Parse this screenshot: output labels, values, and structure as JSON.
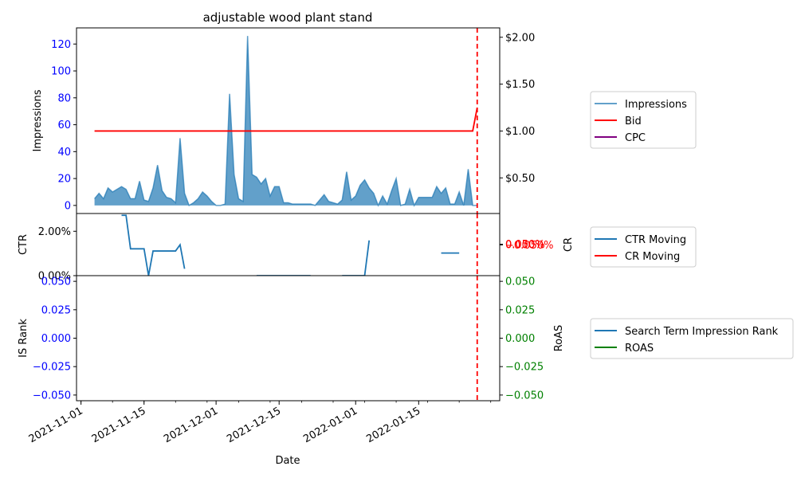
{
  "chart_data": {
    "type": "line",
    "title": "adjustable wood plant stand",
    "xlabel": "Date",
    "x_ticks": [
      "2021-11-01",
      "2021-11-15",
      "2021-12-01",
      "2021-12-15",
      "2022-01-01",
      "2022-01-15"
    ],
    "marker_date": "2022-01-28",
    "panels": [
      {
        "name": "impressions",
        "ylabel_left": "Impressions",
        "ylabel_right": "",
        "ylim_left": [
          -6,
          132
        ],
        "ylim_right": [
          0.12,
          2.1
        ],
        "yticks_left": [
          "0",
          "20",
          "40",
          "60",
          "80",
          "100",
          "120"
        ],
        "yticks_right": [
          "$0.50",
          "$1.00",
          "$1.50",
          "$2.00"
        ],
        "left_tick_color": "#0000ff",
        "right_tick_color": "#000000",
        "series": [
          {
            "name": "Impressions",
            "axis": "left",
            "kind": "area",
            "color": "#1f77b4",
            "x": [
              "2021-11-04",
              "2021-11-05",
              "2021-11-06",
              "2021-11-07",
              "2021-11-08",
              "2021-11-09",
              "2021-11-10",
              "2021-11-11",
              "2021-11-12",
              "2021-11-13",
              "2021-11-14",
              "2021-11-15",
              "2021-11-16",
              "2021-11-17",
              "2021-11-18",
              "2021-11-19",
              "2021-11-20",
              "2021-11-21",
              "2021-11-22",
              "2021-11-23",
              "2021-11-24",
              "2021-11-25",
              "2021-11-26",
              "2021-11-27",
              "2021-11-28",
              "2021-11-29",
              "2021-11-30",
              "2021-12-01",
              "2021-12-02",
              "2021-12-03",
              "2021-12-04",
              "2021-12-05",
              "2021-12-06",
              "2021-12-07",
              "2021-12-08",
              "2021-12-09",
              "2021-12-10",
              "2021-12-11",
              "2021-12-12",
              "2021-12-13",
              "2021-12-14",
              "2021-12-15",
              "2021-12-16",
              "2021-12-17",
              "2021-12-18",
              "2021-12-19",
              "2021-12-20",
              "2021-12-21",
              "2021-12-22",
              "2021-12-23",
              "2021-12-24",
              "2021-12-25",
              "2021-12-26",
              "2021-12-27",
              "2021-12-28",
              "2021-12-29",
              "2021-12-30",
              "2021-12-31",
              "2022-01-01",
              "2022-01-02",
              "2022-01-03",
              "2022-01-04",
              "2022-01-05",
              "2022-01-06",
              "2022-01-07",
              "2022-01-08",
              "2022-01-09",
              "2022-01-10",
              "2022-01-11",
              "2022-01-12",
              "2022-01-13",
              "2022-01-14",
              "2022-01-15",
              "2022-01-16",
              "2022-01-17",
              "2022-01-18",
              "2022-01-19",
              "2022-01-20",
              "2022-01-21",
              "2022-01-22",
              "2022-01-23",
              "2022-01-24",
              "2022-01-25",
              "2022-01-26",
              "2022-01-27",
              "2022-01-28"
            ],
            "values": [
              5,
              9,
              5,
              13,
              10,
              12,
              14,
              12,
              5,
              5,
              18,
              4,
              3,
              13,
              30,
              11,
              6,
              5,
              2,
              50,
              9,
              0,
              2,
              5,
              10,
              7,
              3,
              0,
              0,
              1,
              83,
              23,
              5,
              3,
              126,
              23,
              21,
              16,
              20,
              7,
              14,
              14,
              2,
              2,
              1,
              1,
              1,
              1,
              1,
              0,
              4,
              8,
              3,
              2,
              1,
              4,
              25,
              4,
              7,
              15,
              19,
              13,
              9,
              0,
              7,
              1,
              11,
              20,
              0,
              1,
              12,
              0,
              6,
              6,
              6,
              6,
              14,
              9,
              13,
              1,
              1,
              10,
              0,
              27,
              0,
              0
            ]
          },
          {
            "name": "Bid",
            "axis": "right",
            "kind": "line",
            "color": "#ff0000",
            "x": [
              "2021-11-04",
              "2022-01-27",
              "2022-01-28"
            ],
            "values": [
              1.0,
              1.0,
              1.25
            ]
          },
          {
            "name": "CPC",
            "axis": "right",
            "kind": "line",
            "color": "#800080",
            "x": [],
            "values": []
          }
        ]
      },
      {
        "name": "ctr-cr",
        "ylabel_left": "CTR",
        "ylabel_right": "CR",
        "ylim_left": [
          0.0,
          0.028
        ],
        "ylim_right": [
          -0.05,
          0.05
        ],
        "yticks_left": [
          "0.00%",
          "2.00%"
        ],
        "yticks_right": [
          "0.050%",
          "0.000%",
          "−0.050%"
        ],
        "left_tick_color": "#000000",
        "right_tick_color": "#ff0000",
        "series": [
          {
            "name": "CTR Moving",
            "axis": "left",
            "kind": "line",
            "color": "#1f77b4",
            "segments": [
              {
                "x": [
                  "2021-11-10",
                  "2021-11-11",
                  "2021-11-12",
                  "2021-11-13",
                  "2021-11-14",
                  "2021-11-15",
                  "2021-11-16",
                  "2021-11-17",
                  "2021-11-18",
                  "2021-11-19",
                  "2021-11-20",
                  "2021-11-21",
                  "2021-11-22",
                  "2021-11-23",
                  "2021-11-24"
                ],
                "values": [
                  0.0272,
                  0.0272,
                  0.0121,
                  0.0121,
                  0.0121,
                  0.0121,
                  0.0,
                  0.0111,
                  0.0111,
                  0.0111,
                  0.0111,
                  0.0111,
                  0.0111,
                  0.0139,
                  0.0031
                ]
              },
              {
                "x": [
                  "2021-12-10",
                  "2021-12-22"
                ],
                "values": [
                  0.0,
                  0.0
                ]
              },
              {
                "x": [
                  "2021-12-29",
                  "2022-01-03",
                  "2022-01-04"
                ],
                "values": [
                  0.0,
                  0.0,
                  0.0159
                ]
              },
              {
                "x": [
                  "2022-01-20",
                  "2022-01-24"
                ],
                "values": [
                  0.0102,
                  0.0102
                ]
              }
            ]
          },
          {
            "name": "CR Moving",
            "axis": "right",
            "kind": "line",
            "color": "#ff0000",
            "x": [],
            "values": []
          }
        ]
      },
      {
        "name": "rank-roas",
        "ylabel_left": "IS Rank",
        "ylabel_right": "RoAS",
        "ylim_left": [
          -0.055,
          0.055
        ],
        "ylim_right": [
          -0.055,
          0.055
        ],
        "yticks_left": [
          "0.050",
          "0.025",
          "0.000",
          "−0.025",
          "−0.050"
        ],
        "yticks_right": [
          "0.050",
          "0.025",
          "0.000",
          "−0.025",
          "−0.050"
        ],
        "left_tick_color": "#0000ff",
        "right_tick_color": "#008000",
        "series": [
          {
            "name": "Search Term Impression Rank",
            "axis": "left",
            "kind": "line",
            "color": "#1f77b4",
            "x": [],
            "values": []
          },
          {
            "name": "ROAS",
            "axis": "right",
            "kind": "line",
            "color": "#008000",
            "x": [],
            "values": []
          }
        ]
      }
    ]
  }
}
